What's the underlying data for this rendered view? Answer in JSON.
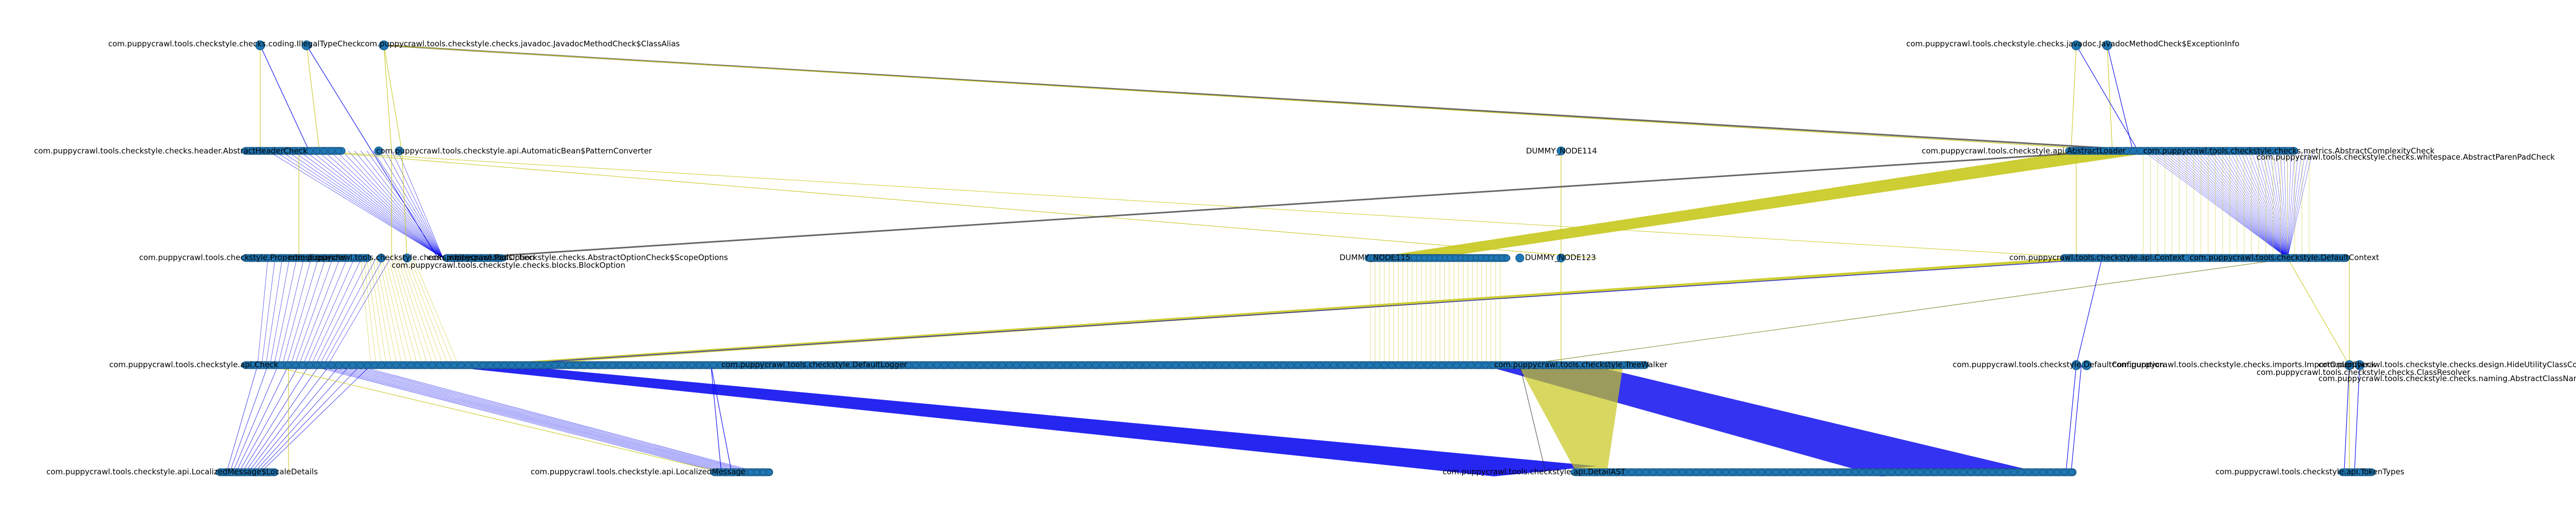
{
  "colors": {
    "background": "#ffffff",
    "node_fill": "#1f77b4",
    "node_stroke": "#164f7a",
    "edge_blue": "#0000ee",
    "edge_yellow": "#c8c81e",
    "edge_gray": "#555555",
    "edge_black": "#222222",
    "label": "#000000"
  },
  "layers": [
    {
      "id": "layer-1",
      "labels": [
        {
          "id": "n1a",
          "text": "com.puppycrawl.tools.checkstyle.checks.coding.IllegalTypeCheck"
        },
        {
          "id": "n1b",
          "text": "com.puppycrawl.tools.checkstyle.checks.javadoc.JavadocMethodCheck$ClassAlias"
        },
        {
          "id": "n1c",
          "text": "com.puppycrawl.tools.checkstyle.checks.javadoc.JavadocMethodCheck$ExceptionInfo"
        }
      ]
    },
    {
      "id": "layer-2",
      "labels": [
        {
          "id": "n2a",
          "text": "com.puppycrawl.tools.checkstyle.checks.header.AbstractHeaderCheck"
        },
        {
          "id": "n2b",
          "text": "com.puppycrawl.tools.checkstyle.api.AutomaticBean$PatternConverter"
        },
        {
          "id": "n2c",
          "text": "com.puppycrawl.tools.checkstyle.api.AbstractLoader"
        },
        {
          "id": "n2d",
          "text": "DUMMY_NODE114"
        },
        {
          "id": "n2e",
          "text": "com.puppycrawl.tools.checkstyle.checks.metrics.AbstractComplexityCheck"
        },
        {
          "id": "n2f",
          "text": "com.puppycrawl.tools.checkstyle.checks.whitespace.AbstractParenPadCheck"
        }
      ]
    },
    {
      "id": "layer-3",
      "labels": [
        {
          "id": "n3a",
          "text": "com.puppycrawl.tools.checkstyle.PropertiesExpander"
        },
        {
          "id": "n3b",
          "text": "com.puppycrawl.tools.checkstyle.checks.whitespace.PadOption"
        },
        {
          "id": "n3c",
          "text": "com.puppycrawl.tools.checkstyle.checks.blocks.BlockOption"
        },
        {
          "id": "n3d",
          "text": "com.puppycrawl.tools.checkstyle.checks.AbstractOptionCheck$ScopeOptions"
        },
        {
          "id": "n3e",
          "text": "DUMMY_NODE115"
        },
        {
          "id": "n3f",
          "text": "DUMMY_NODE123"
        },
        {
          "id": "n3g",
          "text": "com.puppycrawl.tools.checkstyle.api.Context"
        },
        {
          "id": "n3h",
          "text": "com.puppycrawl.tools.checkstyle.DefaultContext"
        }
      ]
    },
    {
      "id": "layer-4",
      "labels": [
        {
          "id": "n4a",
          "text": "com.puppycrawl.tools.checkstyle.api.Check"
        },
        {
          "id": "n4b",
          "text": "com.puppycrawl.tools.checkstyle.DefaultLogger"
        },
        {
          "id": "n4c",
          "text": "com.puppycrawl.tools.checkstyle.TreeWalker"
        },
        {
          "id": "n4d",
          "text": "com.puppycrawl.tools.checkstyle.DefaultConfiguration"
        },
        {
          "id": "n4e",
          "text": "com.puppycrawl.tools.checkstyle.checks.imports.ImportOrderCheck"
        },
        {
          "id": "n4f",
          "text": "com.puppycrawl.tools.checkstyle.checks.ClassResolver"
        },
        {
          "id": "n4g",
          "text": "com.puppycrawl.tools.checkstyle.checks.design.HideUtilityClassConstructorCheck"
        },
        {
          "id": "n4h",
          "text": "com.puppycrawl.tools.checkstyle.checks.naming.AbstractClassNameComparator"
        }
      ]
    },
    {
      "id": "layer-5",
      "labels": [
        {
          "id": "n5a",
          "text": "com.puppycrawl.tools.checkstyle.api.LocalizedMessage$LocaleDetails"
        },
        {
          "id": "n5b",
          "text": "com.puppycrawl.tools.checkstyle.api.LocalizedMessage"
        },
        {
          "id": "n5c",
          "text": "com.puppycrawl.tools.checkstyle.api.DetailAST"
        },
        {
          "id": "n5d",
          "text": "com.puppycrawl.tools.checkstyle.api.TokenTypes"
        }
      ]
    }
  ]
}
